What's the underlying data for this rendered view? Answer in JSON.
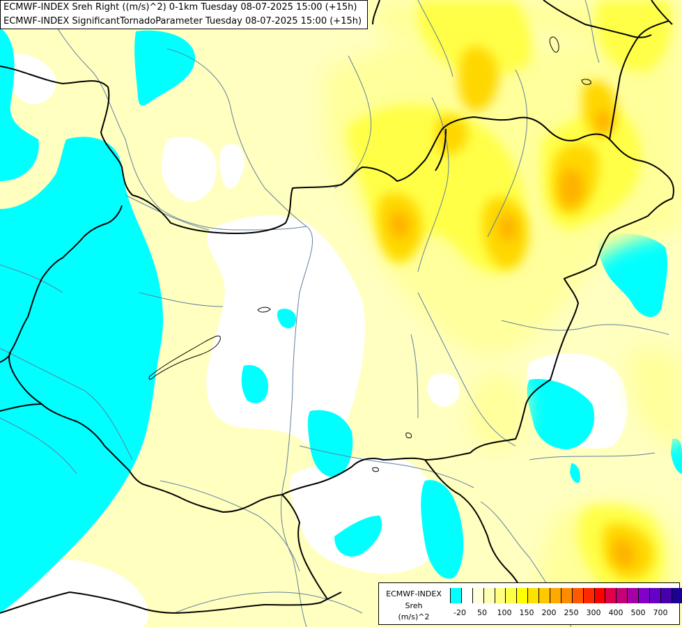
{
  "header": {
    "line1": "ECMWF-INDEX Sreh Right ((m/s)^2) 0-1km Tuesday 08-07-2025 15:00 (+15h)",
    "line2": "ECMWF-INDEX SignificantTornadoParameter Tuesday 08-07-2025 15:00 (+15h)"
  },
  "legend": {
    "source": "ECMWF-INDEX",
    "parameter": "Sreh",
    "unit": "(m/s)^2",
    "colors": [
      "#00ffff",
      "#ffffff",
      "#ffffdd",
      "#ffffb4",
      "#ffff82",
      "#ffff46",
      "#ffff00",
      "#ffe100",
      "#ffc800",
      "#ffaa00",
      "#ff8c00",
      "#ff5a00",
      "#ff2800",
      "#ff0000",
      "#e1004b",
      "#c80078",
      "#a500a5",
      "#8200c8",
      "#6400c8",
      "#4600aa",
      "#1e0096",
      "#000080"
    ],
    "ticks": [
      "-20",
      "50",
      "100",
      "150",
      "200",
      "250",
      "300",
      "400",
      "500",
      "700"
    ]
  },
  "colors": {
    "cyan": "#00ffff",
    "white": "#ffffff",
    "pale_yellow": "#ffffc0",
    "light_yellow": "#ffff9b",
    "yellow": "#ffff4a",
    "bright_yellow": "#ffff00",
    "gold": "#ffd700",
    "orange": "#ffb000",
    "dark_orange": "#ff9500",
    "border": "#000000",
    "river": "#5f7f9f"
  }
}
